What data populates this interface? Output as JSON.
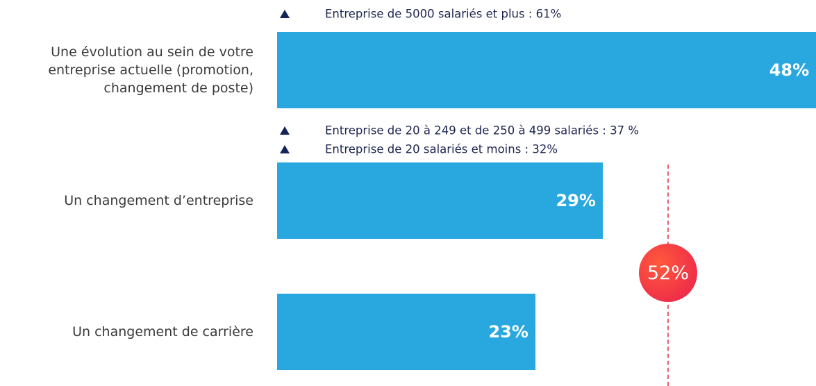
{
  "chart_data": {
    "type": "bar",
    "orientation": "horizontal",
    "categories": [
      "Une évolution au sein de votre entreprise actuelle (promotion, changement de poste)",
      "Un changement d’entreprise",
      "Un changement de carrière"
    ],
    "values": [
      48,
      29,
      23
    ],
    "value_labels": [
      "48%",
      "29%",
      "23%"
    ],
    "color": "#29a8e0",
    "annotations": [
      [
        "Entreprise de 5000 salariés et plus : 61%"
      ],
      [
        "Entreprise de 20 à 249 et de 250 à 499 salariés : 37 %",
        "Entreprise de 20 salariés et moins : 32%"
      ],
      []
    ],
    "total": {
      "value": 52,
      "label": "52%"
    }
  }
}
